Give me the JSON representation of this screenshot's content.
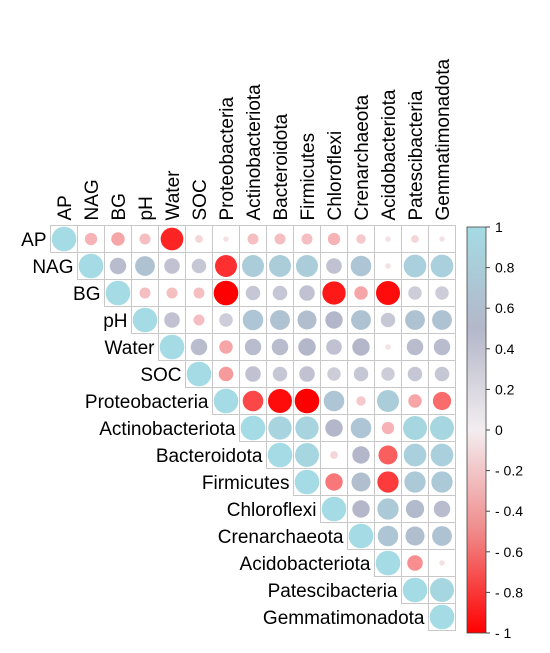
{
  "chart_data": {
    "type": "heatmap",
    "style": "circle-correlation-upper-triangle",
    "variables": [
      "AP",
      "NAG",
      "BG",
      "pH",
      "Water",
      "SOC",
      "Proteobacteria",
      "Actinobacteriota",
      "Bacteroidota",
      "Firmicutes",
      "Chloroflexi",
      "Crenarchaeota",
      "Acidobacteriota",
      "Patescibacteria",
      "Gemmatimonadota"
    ],
    "values": [
      [
        1,
        -0.25,
        -0.3,
        -0.2,
        -0.85,
        -0.1,
        -0.05,
        -0.2,
        -0.2,
        -0.2,
        -0.25,
        -0.15,
        -0.05,
        -0.1,
        -0.05
      ],
      [
        null,
        1,
        0.45,
        0.65,
        0.4,
        0.35,
        -0.8,
        0.8,
        0.8,
        0.8,
        0.4,
        0.7,
        -0.05,
        0.85,
        0.85
      ],
      [
        null,
        null,
        1,
        -0.2,
        -0.2,
        -0.2,
        -1,
        0.35,
        0.35,
        0.4,
        -0.9,
        -0.3,
        -0.95,
        0.3,
        0.3
      ],
      [
        null,
        null,
        null,
        1,
        0.4,
        -0.2,
        0.3,
        0.7,
        0.65,
        0.6,
        0.5,
        0.65,
        0.35,
        0.65,
        0.65
      ],
      [
        null,
        null,
        null,
        null,
        1,
        0.45,
        -0.3,
        0.45,
        0.45,
        0.5,
        0.4,
        0.5,
        -0.05,
        0.45,
        0.45
      ],
      [
        null,
        null,
        null,
        null,
        null,
        1,
        -0.35,
        0.4,
        0.35,
        0.4,
        0.3,
        0.35,
        0.3,
        0.35,
        0.35
      ],
      [
        null,
        null,
        null,
        null,
        null,
        null,
        1,
        -0.7,
        -0.95,
        -1,
        0.7,
        -0.15,
        0.8,
        -0.3,
        -0.55
      ],
      [
        null,
        null,
        null,
        null,
        null,
        null,
        null,
        1,
        0.9,
        0.9,
        0.5,
        0.7,
        -0.25,
        0.95,
        0.95
      ],
      [
        null,
        null,
        null,
        null,
        null,
        null,
        null,
        null,
        1,
        0.95,
        -0.1,
        0.5,
        -0.6,
        0.85,
        0.85
      ],
      [
        null,
        null,
        null,
        null,
        null,
        null,
        null,
        null,
        null,
        1,
        -0.5,
        0.6,
        -0.75,
        0.75,
        0.75
      ],
      [
        null,
        null,
        null,
        null,
        null,
        null,
        null,
        null,
        null,
        null,
        1,
        0.5,
        0.75,
        0.55,
        0.45
      ],
      [
        null,
        null,
        null,
        null,
        null,
        null,
        null,
        null,
        null,
        null,
        null,
        1,
        0.7,
        0.6,
        0.65
      ],
      [
        null,
        null,
        null,
        null,
        null,
        null,
        null,
        null,
        null,
        null,
        null,
        null,
        1,
        -0.4,
        -0.05
      ],
      [
        null,
        null,
        null,
        null,
        null,
        null,
        null,
        null,
        null,
        null,
        null,
        null,
        null,
        1,
        0.95
      ],
      [
        null,
        null,
        null,
        null,
        null,
        null,
        null,
        null,
        null,
        null,
        null,
        null,
        null,
        null,
        1
      ]
    ],
    "colorbar": {
      "range": [
        -1,
        1
      ],
      "ticks": [
        "1",
        "0.8",
        "0.6",
        "0.4",
        "0.2",
        "0",
        "- 0.2",
        "- 0.4",
        "- 0.6",
        "- 0.8",
        "- 1"
      ],
      "tick_values": [
        1,
        0.8,
        0.6,
        0.4,
        0.2,
        0,
        -0.2,
        -0.4,
        -0.6,
        -0.8,
        -1
      ],
      "colors": {
        "negative": "#ff0000",
        "zero": "#f3edf0",
        "mid_positive": "#b3b7c9",
        "positive": "#a4dbe4"
      },
      "placement": "right"
    },
    "title": "",
    "xlabel": "",
    "ylabel": ""
  }
}
